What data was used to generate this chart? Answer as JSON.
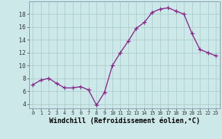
{
  "x": [
    0,
    1,
    2,
    3,
    4,
    5,
    6,
    7,
    8,
    9,
    10,
    11,
    12,
    13,
    14,
    15,
    16,
    17,
    18,
    19,
    20,
    21,
    22,
    23
  ],
  "y": [
    7.0,
    7.7,
    8.0,
    7.2,
    6.5,
    6.5,
    6.7,
    6.2,
    3.8,
    5.8,
    10.0,
    12.0,
    13.8,
    15.8,
    16.7,
    18.3,
    18.8,
    19.0,
    18.5,
    18.0,
    15.0,
    12.5,
    12.0,
    11.5
  ],
  "line_color": "#882288",
  "marker": "+",
  "marker_size": 4,
  "linewidth": 1.0,
  "xlabel": "Windchill (Refroidissement éolien,°C)",
  "xlabel_fontsize": 7,
  "ytick_values": [
    4,
    6,
    8,
    10,
    12,
    14,
    16,
    18
  ],
  "xtick_labels": [
    "0",
    "1",
    "2",
    "3",
    "4",
    "5",
    "6",
    "7",
    "8",
    "9",
    "10",
    "11",
    "12",
    "13",
    "14",
    "15",
    "16",
    "17",
    "18",
    "19",
    "20",
    "21",
    "22",
    "23"
  ],
  "xlim": [
    -0.5,
    23.5
  ],
  "ylim": [
    3.3,
    20.0
  ],
  "bg_color": "#cce8e8",
  "grid_color": "#aacccc",
  "spine_color": "#8899aa"
}
